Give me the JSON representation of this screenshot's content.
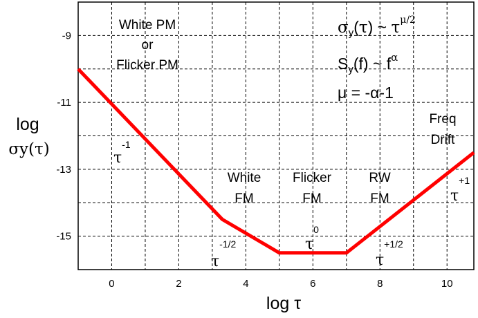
{
  "chart_data": {
    "type": "line",
    "xlabel": "log τ",
    "ylabel_top": "log",
    "ylabel_bottom": "σy(τ)",
    "xlim": [
      -1,
      10.8
    ],
    "ylim": [
      -16,
      -8
    ],
    "x_ticks": [
      0,
      2,
      4,
      6,
      8,
      10
    ],
    "y_ticks": [
      -9,
      -11,
      -13,
      -15
    ],
    "grid": true,
    "series": [
      {
        "color": "#ff0000",
        "x": [
          -1,
          3.3,
          5,
          7,
          10.8
        ],
        "y": [
          -10,
          -14.5,
          -15.5,
          -15.5,
          -12.5
        ]
      }
    ],
    "legend_box": {
      "line1": "σy(τ) ~ τ^μ/2",
      "line2": "Sy(f) ~ f^α",
      "line3": "μ = -α-1"
    },
    "annotations": {
      "white_pm": [
        "White PM",
        "or",
        "Flicker PM"
      ],
      "white_fm": [
        "White",
        "FM"
      ],
      "flicker_fm": [
        "Flicker",
        "FM"
      ],
      "rw_fm": [
        "RW",
        "FM"
      ],
      "freq_drift": [
        "Freq",
        "Drift"
      ],
      "slope_tau_base": "τ",
      "slope_m1": "-1",
      "slope_m12": "-1/2",
      "slope_0": "0",
      "slope_p12": "+1/2",
      "slope_p1": "+1"
    }
  }
}
